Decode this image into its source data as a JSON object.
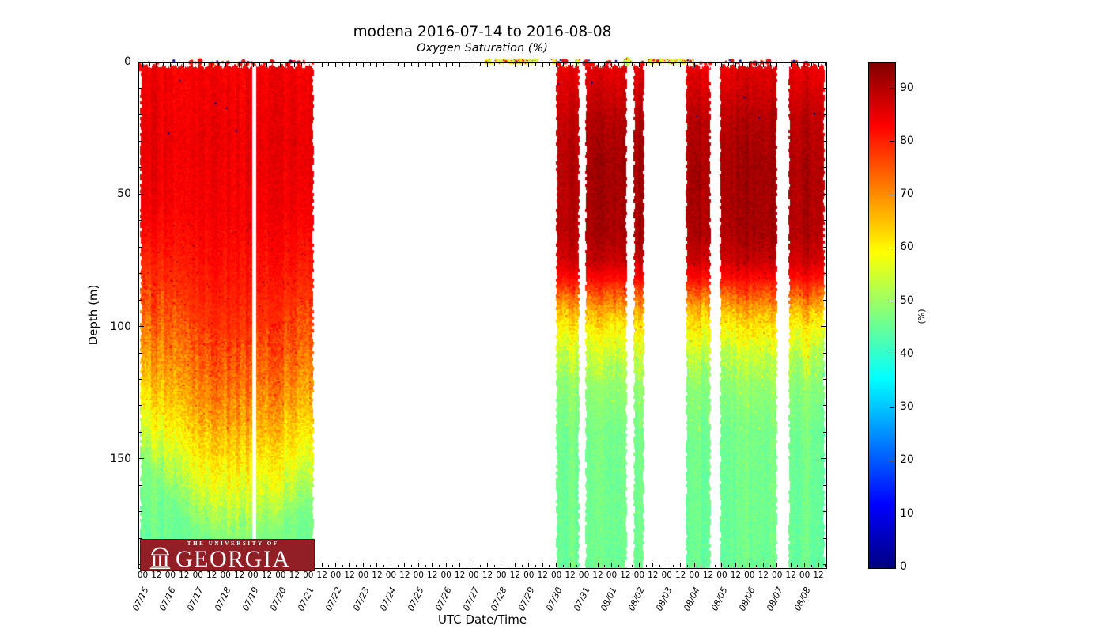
{
  "chart_data": {
    "type": "heatmap",
    "title": "modena 2016-07-14 to 2016-08-08",
    "subtitle": "Oxygen Saturation (%)",
    "xlabel": "UTC Date/Time",
    "ylabel": "Depth (m)",
    "grid": false,
    "x_dates": [
      "07/15",
      "07/16",
      "07/17",
      "07/18",
      "07/19",
      "07/20",
      "07/21",
      "07/22",
      "07/23",
      "07/24",
      "07/25",
      "07/26",
      "07/27",
      "07/28",
      "07/29",
      "07/30",
      "07/31",
      "08/01",
      "08/02",
      "08/03",
      "08/04",
      "08/05",
      "08/06",
      "08/07",
      "08/08"
    ],
    "hour_labels": [
      "00",
      "12"
    ],
    "y_ticks": [
      0,
      50,
      100,
      150
    ],
    "y_minor_step_m": 10,
    "depth_max_m": 191,
    "colorbar": {
      "label": "(%)",
      "min": 0,
      "max": 95,
      "ticks": [
        0,
        10,
        20,
        30,
        40,
        50,
        60,
        70,
        80,
        90
      ],
      "colormap": "jet",
      "key_colors": {
        "low": "#000080",
        "mid": "#00ffff",
        "high": "#800000"
      }
    },
    "blocks": [
      {
        "name": "07/15-07/21 deployment",
        "t_start": -0.13,
        "t_end": 6.2,
        "profile": "stratified",
        "band_scale": 1.0,
        "gaps": [
          [
            3.97,
            4.08
          ]
        ],
        "depth_shift": [
          [
            0,
            -18
          ],
          [
            0.3,
            8
          ],
          [
            0.55,
            16
          ],
          [
            0.8,
            8
          ],
          [
            1,
            -2
          ]
        ]
      },
      {
        "name": "07/30 segment",
        "t_start": 14.94,
        "t_end": 15.83,
        "profile": "dark_band",
        "band_scale": 0.78,
        "gaps": []
      },
      {
        "name": "07/31-08/01 segment",
        "t_start": 16.0,
        "t_end": 17.55,
        "profile": "dark_band",
        "band_scale": 1.0,
        "gaps": []
      },
      {
        "name": "08/02 segment",
        "t_start": 17.75,
        "t_end": 18.18,
        "profile": "dark_band",
        "band_scale": 1.0,
        "gaps": []
      },
      {
        "name": "08/04 segment",
        "t_start": 19.64,
        "t_end": 20.59,
        "profile": "dark_band",
        "band_scale": 1.0,
        "gaps": []
      },
      {
        "name": "08/05-08/06 segment",
        "t_start": 20.9,
        "t_end": 23.0,
        "profile": "dark_band",
        "band_scale": 1.0,
        "gaps": []
      },
      {
        "name": "08/07-08/08 segment",
        "t_start": 23.39,
        "t_end": 24.74,
        "profile": "dark_band",
        "band_scale": 0.92,
        "gaps": []
      }
    ],
    "profiles": {
      "stratified": [
        [
          0,
          84
        ],
        [
          30,
          85
        ],
        [
          55,
          84
        ],
        [
          75,
          81
        ],
        [
          90,
          78
        ],
        [
          105,
          74
        ],
        [
          120,
          69
        ],
        [
          135,
          63
        ],
        [
          148,
          57
        ],
        [
          158,
          52
        ],
        [
          168,
          47
        ],
        [
          191,
          45
        ]
      ],
      "dark_band": [
        [
          0,
          85
        ],
        [
          10,
          87
        ],
        [
          22,
          90
        ],
        [
          40,
          91.5
        ],
        [
          65,
          91
        ],
        [
          75,
          88
        ],
        [
          82,
          82
        ],
        [
          88,
          74
        ],
        [
          94,
          66
        ],
        [
          101,
          60
        ],
        [
          110,
          54
        ],
        [
          122,
          49
        ],
        [
          140,
          46.5
        ],
        [
          191,
          45.5
        ]
      ]
    },
    "surface_strips": [
      [
        12.39,
        14.31
      ],
      [
        14.8,
        14.97
      ],
      [
        15.66,
        15.83
      ],
      [
        18.24,
        19.98
      ]
    ],
    "surface_blob": {
      "t": 17.55,
      "value": 54
    },
    "surface_value_range": [
      50,
      66
    ],
    "surface_red_value": 85,
    "axis_range_days": [
      -0.16,
      24.77
    ]
  },
  "logo": {
    "line1": "THE UNIVERSITY OF",
    "line2": "GEORGIA",
    "bg": "#931f26"
  }
}
